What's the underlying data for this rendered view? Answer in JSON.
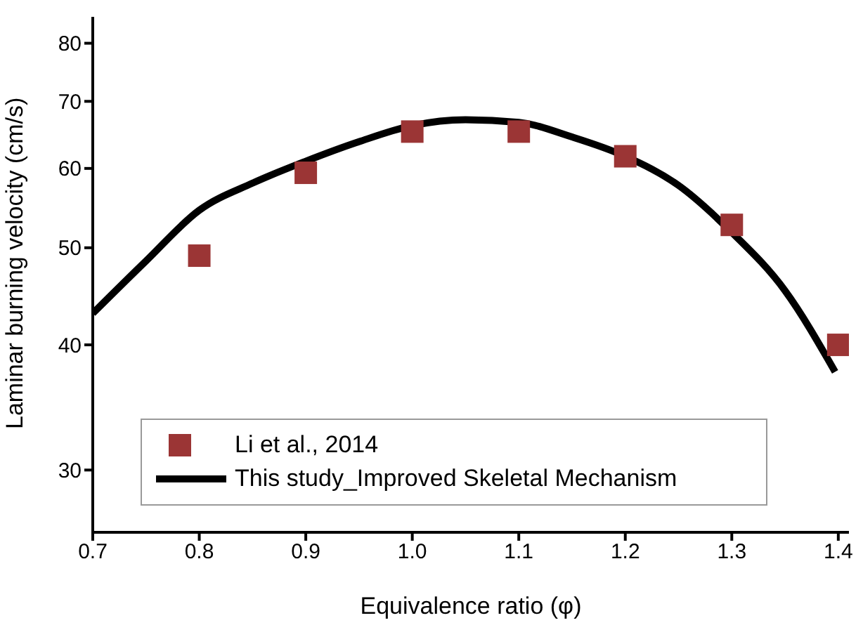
{
  "chart_data": {
    "type": "scatter",
    "xlabel": "Equivalence ratio (φ)",
    "ylabel": "Laminar burning velocity (cm/s)",
    "log": "y",
    "xlim": [
      0.7,
      1.41
    ],
    "ylim": [
      26,
      85
    ],
    "xticks": [
      {
        "value": 0.7,
        "label": "0.7"
      },
      {
        "value": 0.8,
        "label": "0.8"
      },
      {
        "value": 0.9,
        "label": "0.9"
      },
      {
        "value": 1.0,
        "label": "1.0"
      },
      {
        "value": 1.1,
        "label": "1.1"
      },
      {
        "value": 1.2,
        "label": "1.2"
      },
      {
        "value": 1.3,
        "label": "1.3"
      },
      {
        "value": 1.4,
        "label": "1.4"
      }
    ],
    "yticks": [
      30,
      40,
      50,
      60,
      70,
      80
    ],
    "grid": false,
    "legend": "bottom left",
    "series": [
      {
        "name": "Li et al., 2014",
        "marker": "square",
        "color": "#9b3535",
        "x": [
          0.8,
          0.9,
          1.0,
          1.1,
          1.2,
          1.3,
          1.4
        ],
        "values": [
          49.1,
          59.4,
          65.3,
          65.3,
          61.7,
          52.7,
          40.0
        ]
      },
      {
        "name": "This study_Improved Skeletal Mechanism",
        "type": "line",
        "marker": "none",
        "line_style": "solid",
        "color": "#000000",
        "x": [
          0.7,
          0.75,
          0.8,
          0.85,
          0.9,
          0.95,
          1.0,
          1.05,
          1.1,
          1.15,
          1.2,
          1.25,
          1.3,
          1.35,
          1.397
        ],
        "values": [
          43.0,
          48.5,
          54.5,
          58.0,
          61.0,
          63.8,
          66.2,
          67.1,
          66.7,
          64.5,
          61.7,
          57.7,
          51.8,
          45.3,
          37.6
        ]
      }
    ]
  }
}
